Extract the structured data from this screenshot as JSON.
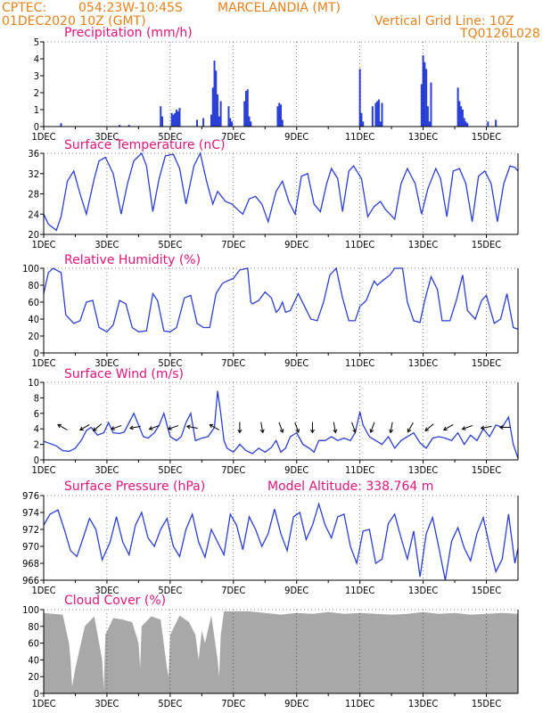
{
  "header": {
    "source": "CPTEC:",
    "coords": "054:23W-10:45S",
    "station": "MARCELANDIA (MT)",
    "date": "01DEC2020 10Z (GMT)",
    "grid_note": "Vertical Grid Line: 10Z",
    "code": "TQ0126L028"
  },
  "x_axis": {
    "start_day": 1,
    "end_day": 16,
    "tick_labels": [
      "1DEC",
      "3DEC",
      "5DEC",
      "7DEC",
      "9DEC",
      "11DEC",
      "13DEC",
      "15DEC"
    ],
    "tick_days": [
      1,
      3,
      5,
      7,
      9,
      11,
      13,
      15
    ]
  },
  "chart_data": [
    {
      "id": "precip",
      "type": "bar",
      "title": "Precipitation (mm/h)",
      "ylim": [
        0,
        5
      ],
      "yticks": [
        0,
        1,
        2,
        3,
        4,
        5
      ],
      "x": [
        1.55,
        3.4,
        3.7,
        4.7,
        4.75,
        5.05,
        5.1,
        5.15,
        5.2,
        5.25,
        5.3,
        5.85,
        6.05,
        6.3,
        6.35,
        6.4,
        6.45,
        6.5,
        6.55,
        6.6,
        6.85,
        6.9,
        6.95,
        7.35,
        7.4,
        7.45,
        7.5,
        7.55,
        8.4,
        8.45,
        8.5,
        8.55,
        11.0,
        11.05,
        11.1,
        11.4,
        11.5,
        11.55,
        11.6,
        11.65,
        11.7,
        12.95,
        13.0,
        13.05,
        13.1,
        13.15,
        13.2,
        13.25,
        14.1,
        14.15,
        14.2,
        14.25,
        14.3,
        14.35,
        14.4,
        15.05,
        15.3
      ],
      "values": [
        0.2,
        0.1,
        0.1,
        1.2,
        0.6,
        0.8,
        0.7,
        0.8,
        1.0,
        0.9,
        1.1,
        0.4,
        0.5,
        0.7,
        2.3,
        3.9,
        3.3,
        1.9,
        0.6,
        1.5,
        1.2,
        0.5,
        0.3,
        1.5,
        2.1,
        2.2,
        0.6,
        0.3,
        1.2,
        1.4,
        1.3,
        0.4,
        3.4,
        0.8,
        0.3,
        1.2,
        1.4,
        1.5,
        1.6,
        0.3,
        1.4,
        2.5,
        4.2,
        3.8,
        3.4,
        1.2,
        0.3,
        2.6,
        2.3,
        1.5,
        1.2,
        1.0,
        0.5,
        0.3,
        0.2,
        0.3,
        0.4
      ]
    },
    {
      "id": "temp",
      "type": "line",
      "title": "Surface Temperature (nC)",
      "ylim": [
        20,
        36
      ],
      "yticks": [
        20,
        24,
        28,
        32,
        36
      ],
      "x": [
        1.0,
        1.15,
        1.4,
        1.55,
        1.75,
        1.95,
        2.15,
        2.35,
        2.6,
        2.75,
        2.95,
        3.2,
        3.45,
        3.65,
        3.85,
        4.1,
        4.25,
        4.45,
        4.65,
        4.85,
        5.1,
        5.3,
        5.5,
        5.75,
        5.95,
        6.15,
        6.35,
        6.5,
        6.75,
        6.95,
        7.15,
        7.3,
        7.5,
        7.7,
        7.9,
        8.1,
        8.35,
        8.55,
        8.75,
        8.95,
        9.15,
        9.35,
        9.55,
        9.75,
        9.95,
        10.1,
        10.3,
        10.45,
        10.65,
        10.8,
        11.05,
        11.25,
        11.45,
        11.65,
        11.8,
        12.1,
        12.3,
        12.5,
        12.75,
        12.95,
        13.15,
        13.4,
        13.55,
        13.75,
        13.95,
        14.15,
        14.35,
        14.55,
        14.75,
        14.95,
        15.15,
        15.35,
        15.55,
        15.75,
        15.9,
        16.0
      ],
      "values": [
        24.0,
        22.0,
        20.8,
        23.5,
        30.5,
        32.5,
        28.0,
        24.0,
        31.0,
        34.5,
        35.2,
        32.0,
        24.0,
        30.0,
        34.5,
        36.0,
        33.5,
        24.5,
        31.0,
        35.5,
        35.8,
        33.0,
        26.0,
        33.5,
        36.0,
        30.5,
        26.0,
        28.5,
        26.5,
        26.0,
        24.8,
        24.0,
        27.0,
        27.5,
        26.0,
        22.5,
        28.5,
        30.5,
        26.5,
        24.0,
        31.5,
        32.0,
        26.0,
        24.5,
        30.0,
        33.0,
        31.0,
        24.5,
        32.5,
        33.5,
        31.0,
        23.5,
        25.5,
        26.5,
        25.0,
        23.0,
        30.0,
        33.0,
        30.0,
        24.0,
        29.0,
        33.0,
        31.0,
        23.5,
        32.5,
        33.0,
        30.0,
        22.5,
        31.5,
        32.5,
        30.0,
        22.5,
        30.0,
        33.5,
        33.2,
        32.5
      ]
    },
    {
      "id": "rh",
      "type": "line",
      "title": "Relative Humidity (%)",
      "ylim": [
        0,
        100
      ],
      "yticks": [
        0,
        20,
        40,
        60,
        80,
        100
      ],
      "x": [
        1.0,
        1.15,
        1.3,
        1.55,
        1.7,
        1.95,
        2.15,
        2.35,
        2.55,
        2.75,
        3.0,
        3.2,
        3.4,
        3.6,
        3.8,
        4.0,
        4.25,
        4.45,
        4.6,
        4.8,
        5.0,
        5.2,
        5.45,
        5.65,
        5.85,
        6.05,
        6.25,
        6.45,
        6.65,
        6.8,
        7.0,
        7.2,
        7.45,
        7.55,
        7.6,
        7.8,
        8.0,
        8.2,
        8.35,
        8.45,
        8.55,
        8.65,
        8.8,
        9.05,
        9.25,
        9.45,
        9.65,
        9.85,
        10.05,
        10.25,
        10.45,
        10.65,
        10.85,
        11.0,
        11.2,
        11.45,
        11.55,
        11.7,
        11.95,
        12.1,
        12.35,
        12.5,
        12.7,
        12.9,
        13.05,
        13.25,
        13.45,
        13.6,
        13.85,
        14.05,
        14.25,
        14.4,
        14.65,
        14.85,
        15.0,
        15.25,
        15.45,
        15.65,
        15.85,
        16.0
      ],
      "values": [
        70,
        95,
        100,
        95,
        45,
        35,
        38,
        60,
        62,
        30,
        25,
        33,
        62,
        58,
        30,
        25,
        26,
        70,
        62,
        26,
        25,
        30,
        65,
        68,
        35,
        30,
        30,
        70,
        82,
        85,
        88,
        98,
        100,
        60,
        58,
        62,
        72,
        65,
        48,
        52,
        60,
        48,
        50,
        70,
        55,
        40,
        38,
        60,
        92,
        100,
        65,
        38,
        38,
        55,
        62,
        85,
        80,
        85,
        92,
        100,
        100,
        60,
        38,
        36,
        62,
        90,
        75,
        38,
        38,
        62,
        92,
        50,
        40,
        62,
        68,
        35,
        40,
        70,
        30,
        28
      ]
    },
    {
      "id": "wind",
      "type": "line",
      "title": "Surface Wind (m/s)",
      "ylim": [
        0,
        10
      ],
      "yticks": [
        0,
        2,
        4,
        6,
        8,
        10
      ],
      "x": [
        1.0,
        1.2,
        1.4,
        1.6,
        1.8,
        2.0,
        2.2,
        2.35,
        2.5,
        2.7,
        2.9,
        3.05,
        3.2,
        3.4,
        3.55,
        3.7,
        3.85,
        4.0,
        4.15,
        4.3,
        4.5,
        4.65,
        4.8,
        5.0,
        5.2,
        5.35,
        5.5,
        5.65,
        5.8,
        6.0,
        6.2,
        6.4,
        6.5,
        6.6,
        6.7,
        6.8,
        7.0,
        7.2,
        7.4,
        7.6,
        7.8,
        8.0,
        8.2,
        8.35,
        8.5,
        8.65,
        8.8,
        9.0,
        9.2,
        9.4,
        9.55,
        9.7,
        9.9,
        10.1,
        10.3,
        10.5,
        10.7,
        10.85,
        11.0,
        11.1,
        11.3,
        11.5,
        11.7,
        11.9,
        12.1,
        12.3,
        12.5,
        12.7,
        12.9,
        13.1,
        13.3,
        13.5,
        13.7,
        13.9,
        14.1,
        14.3,
        14.5,
        14.7,
        14.9,
        15.1,
        15.3,
        15.5,
        15.7,
        15.85,
        16.0
      ],
      "values": [
        2.4,
        2.1,
        1.8,
        1.2,
        1.1,
        1.5,
        2.6,
        3.8,
        4.2,
        3.2,
        3.5,
        4.8,
        3.5,
        3.4,
        3.6,
        4.8,
        6.0,
        4.5,
        3.0,
        2.8,
        3.5,
        4.5,
        6.0,
        3.0,
        2.5,
        3.0,
        4.8,
        6.0,
        2.5,
        2.8,
        3.0,
        4.2,
        8.9,
        6.0,
        2.5,
        1.5,
        1.0,
        2.0,
        1.2,
        0.8,
        1.5,
        1.0,
        1.6,
        2.5,
        1.0,
        1.5,
        3.0,
        3.5,
        2.0,
        1.5,
        1.0,
        2.5,
        2.5,
        3.0,
        2.5,
        2.8,
        2.5,
        3.5,
        6.2,
        4.5,
        3.0,
        2.5,
        2.0,
        3.0,
        1.5,
        2.5,
        3.0,
        3.5,
        2.2,
        1.5,
        2.8,
        3.0,
        2.8,
        2.5,
        3.5,
        2.0,
        3.2,
        2.5,
        4.0,
        3.0,
        4.5,
        4.2,
        5.5,
        2.0,
        0.2
      ]
    },
    {
      "id": "pres",
      "type": "line",
      "title": "Surface Pressure (hPa)",
      "annotation": "Model Altitude: 338.764 m",
      "ylim": [
        966,
        976
      ],
      "yticks": [
        966,
        968,
        970,
        972,
        974,
        976
      ],
      "x": [
        1.0,
        1.2,
        1.45,
        1.65,
        1.85,
        2.05,
        2.25,
        2.45,
        2.65,
        2.85,
        3.1,
        3.3,
        3.5,
        3.7,
        3.9,
        4.1,
        4.3,
        4.5,
        4.7,
        4.9,
        5.1,
        5.3,
        5.5,
        5.7,
        5.9,
        6.1,
        6.3,
        6.5,
        6.7,
        6.9,
        7.1,
        7.3,
        7.5,
        7.7,
        7.9,
        8.1,
        8.3,
        8.5,
        8.7,
        8.9,
        9.1,
        9.3,
        9.5,
        9.7,
        9.9,
        10.1,
        10.3,
        10.5,
        10.7,
        10.9,
        11.1,
        11.3,
        11.5,
        11.7,
        11.9,
        12.1,
        12.3,
        12.5,
        12.7,
        12.9,
        13.1,
        13.3,
        13.5,
        13.7,
        13.9,
        14.1,
        14.3,
        14.5,
        14.7,
        14.9,
        15.1,
        15.3,
        15.5,
        15.7,
        15.9,
        16.0
      ],
      "values": [
        972.5,
        973.8,
        974.3,
        972.0,
        969.5,
        968.8,
        971.0,
        973.3,
        972.0,
        968.4,
        970.5,
        973.5,
        970.5,
        969.0,
        972.5,
        974.0,
        971.0,
        970.0,
        972.0,
        973.3,
        970.0,
        968.8,
        972.0,
        973.8,
        970.5,
        968.7,
        972.0,
        970.5,
        969.0,
        973.8,
        972.5,
        969.6,
        973.5,
        972.0,
        970.0,
        971.5,
        974.4,
        971.5,
        969.5,
        973.5,
        974.0,
        970.8,
        972.5,
        975.0,
        972.5,
        971.0,
        973.5,
        973.8,
        970.0,
        968.0,
        971.8,
        972.0,
        968.0,
        968.5,
        972.7,
        973.8,
        971.0,
        968.5,
        971.8,
        966.4,
        971.5,
        973.4,
        969.8,
        966.0,
        970.6,
        972.2,
        969.8,
        968.3,
        971.5,
        973.4,
        970.0,
        967.0,
        968.5,
        973.8,
        968.0,
        969.8
      ]
    },
    {
      "id": "cloud",
      "type": "area",
      "title": "Cloud Cover (%)",
      "ylim": [
        0,
        100
      ],
      "yticks": [
        0,
        20,
        40,
        60,
        80,
        100
      ],
      "x": [
        1.0,
        1.3,
        1.6,
        1.8,
        1.85,
        1.9,
        2.0,
        2.3,
        2.6,
        2.85,
        2.9,
        2.95,
        3.2,
        3.5,
        3.8,
        4.0,
        4.05,
        4.1,
        4.4,
        4.7,
        4.9,
        4.95,
        5.0,
        5.3,
        5.6,
        5.8,
        5.9,
        6.0,
        6.1,
        6.3,
        6.5,
        6.55,
        6.6,
        6.7,
        7.0,
        7.5,
        8.0,
        8.5,
        9.0,
        9.5,
        10.0,
        10.5,
        11.0,
        11.5,
        12.0,
        12.5,
        13.0,
        13.5,
        14.0,
        14.5,
        15.0,
        15.5,
        16.0
      ],
      "values": [
        96,
        95,
        94,
        60,
        40,
        8,
        30,
        80,
        92,
        40,
        5,
        70,
        90,
        88,
        85,
        60,
        30,
        80,
        92,
        88,
        30,
        20,
        70,
        93,
        85,
        70,
        40,
        75,
        60,
        93,
        40,
        20,
        70,
        98,
        98,
        98,
        96,
        94,
        96,
        95,
        97,
        95,
        96,
        95,
        94,
        95,
        97,
        95,
        96,
        94,
        95,
        96,
        95
      ]
    }
  ],
  "wind_arrows": {
    "x": [
      1.6,
      2.3,
      2.7,
      3.3,
      3.9,
      4.5,
      5.1,
      5.7,
      6.4,
      7.2,
      7.9,
      8.5,
      9.0,
      9.5,
      10.2,
      10.8,
      11.4,
      12.0,
      12.6,
      13.2,
      13.8,
      14.4,
      15.0,
      15.6
    ],
    "dir": [
      300,
      240,
      230,
      250,
      260,
      250,
      250,
      280,
      300,
      180,
      170,
      160,
      160,
      180,
      170,
      160,
      200,
      190,
      210,
      230,
      240,
      250,
      260,
      270
    ]
  }
}
